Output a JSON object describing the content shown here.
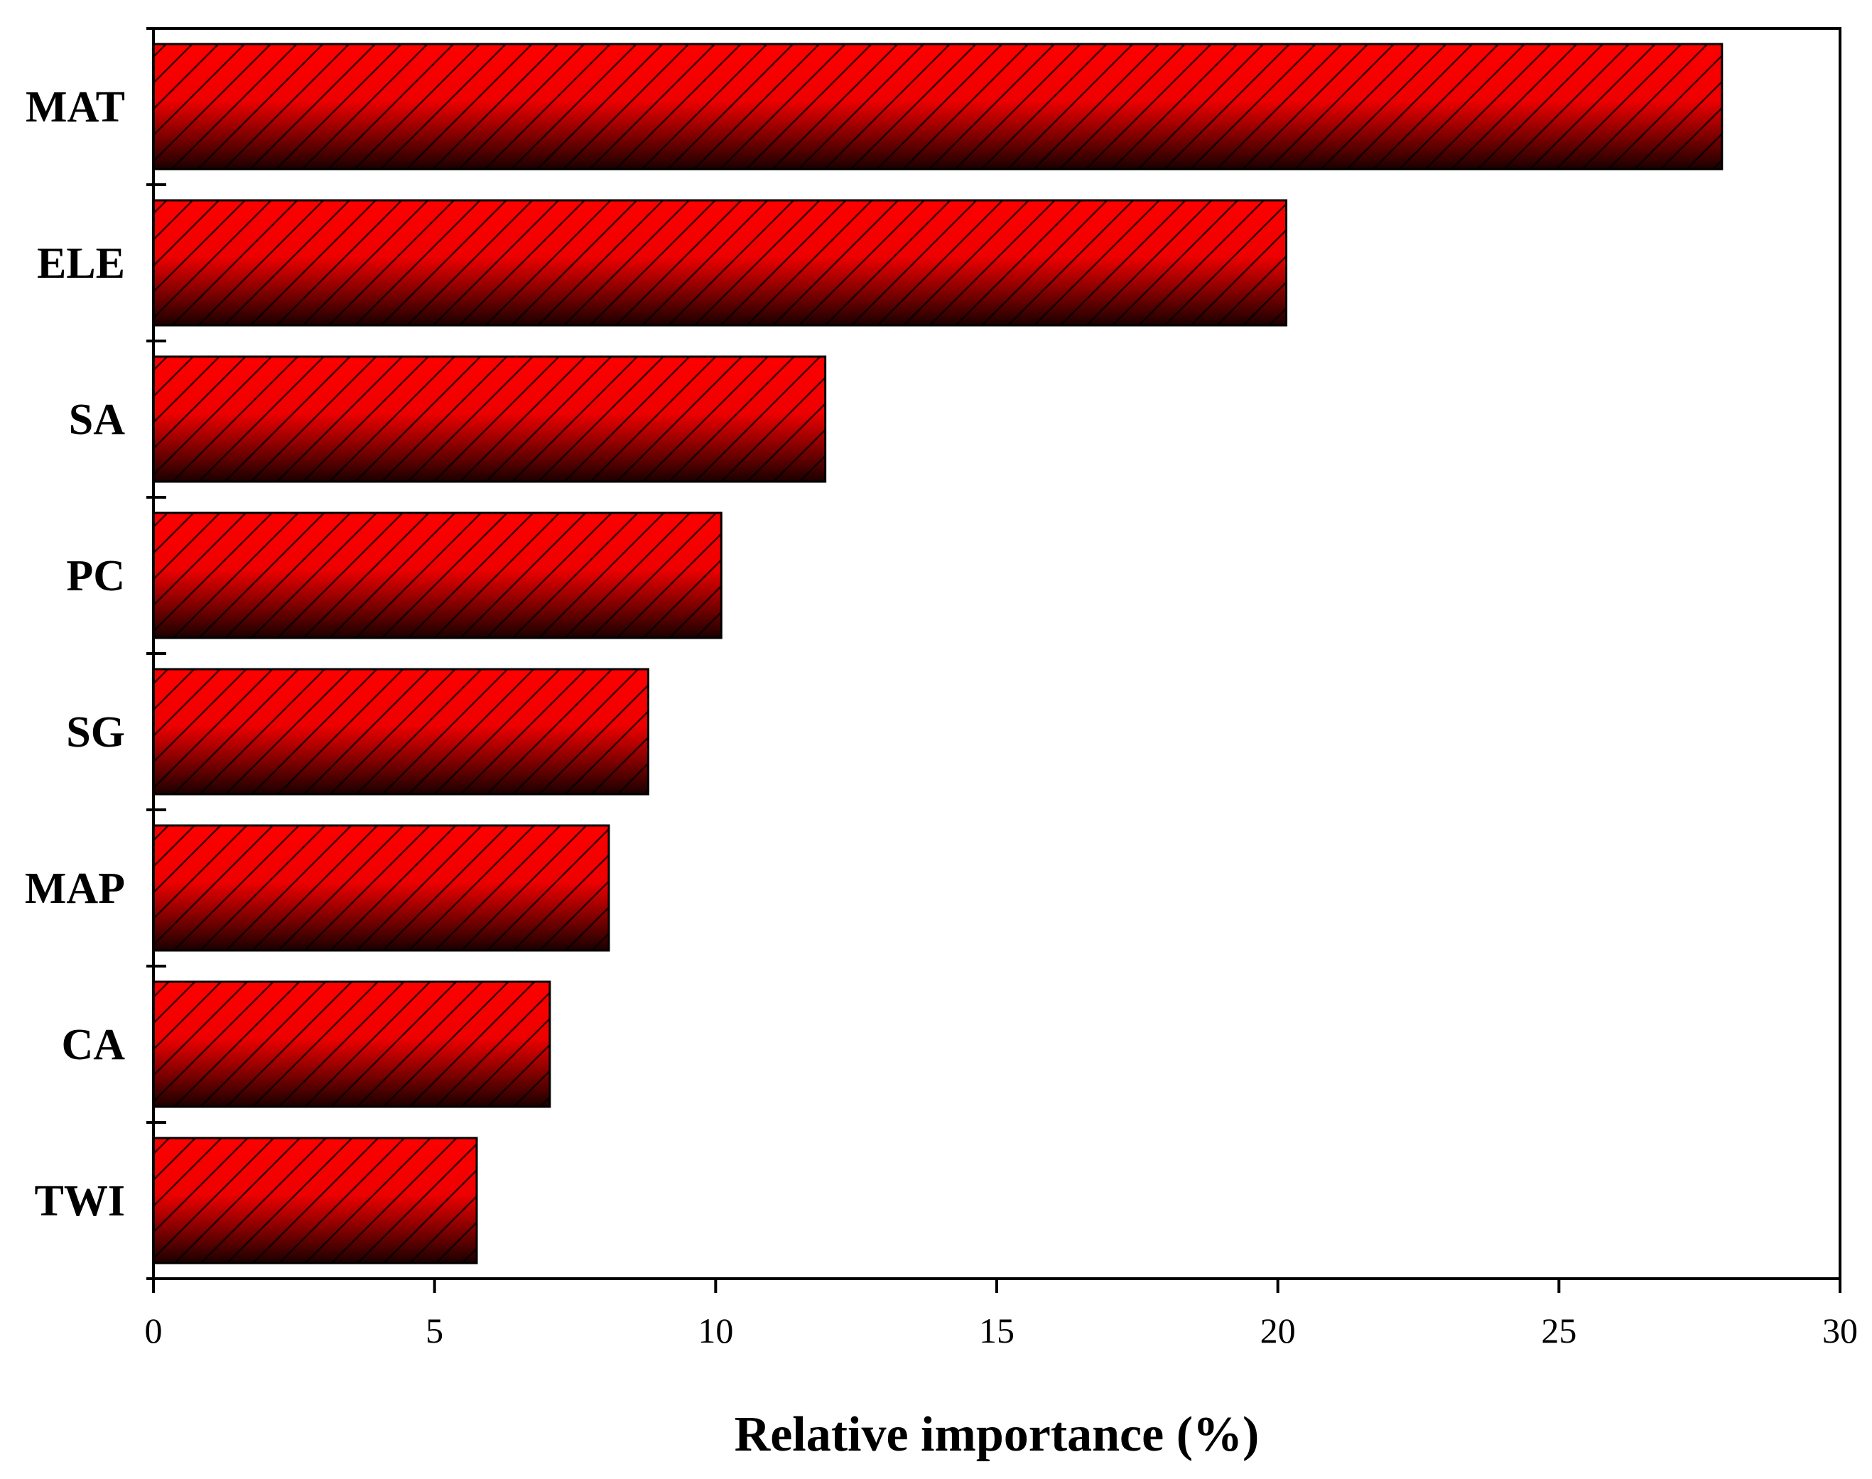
{
  "chart_data": {
    "type": "bar",
    "orientation": "horizontal",
    "categories": [
      "MAT",
      "ELE",
      "SA",
      "PC",
      "SG",
      "MAP",
      "CA",
      "TWI"
    ],
    "values": [
      27.9,
      20.15,
      11.95,
      10.1,
      8.8,
      8.1,
      7.05,
      5.75
    ],
    "title": "",
    "xlabel": "Relative importance (%)",
    "ylabel": "",
    "xlim": [
      0,
      30
    ],
    "xticks": [
      "0",
      "5",
      "10",
      "15",
      "20",
      "25",
      "30"
    ],
    "grid": false,
    "legend": "none",
    "colors": {
      "bar_fill": "#ff0000",
      "bar_shade": "#000000",
      "hatch": "#000000",
      "axis": "#000000"
    }
  }
}
